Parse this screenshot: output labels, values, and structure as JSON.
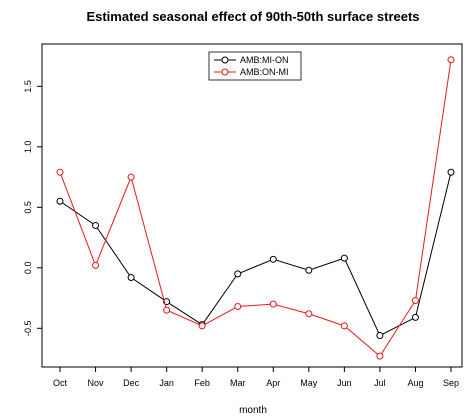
{
  "chart_data": {
    "type": "line",
    "title": "Estimated seasonal effect of 90th-50th surface streets",
    "xlabel": "month",
    "ylabel": "",
    "categories": [
      "Oct",
      "Nov",
      "Dec",
      "Jan",
      "Feb",
      "Mar",
      "Apr",
      "May",
      "Jun",
      "Jul",
      "Aug",
      "Sep"
    ],
    "ylim": [
      -0.82,
      1.85
    ],
    "yticks": [
      "-0.5",
      "0.0",
      "0.5",
      "1.0",
      "1.5"
    ],
    "grid": false,
    "legend_position": "top-center",
    "series": [
      {
        "name": "AMB:MI-ON",
        "color": "#000000",
        "values": [
          0.55,
          0.35,
          -0.08,
          -0.28,
          -0.47,
          -0.05,
          0.07,
          -0.02,
          0.08,
          -0.56,
          -0.41,
          0.79
        ]
      },
      {
        "name": "AMB:ON-MI",
        "color": "#e41a1c",
        "values": [
          0.79,
          0.02,
          0.75,
          -0.35,
          -0.48,
          -0.32,
          -0.3,
          -0.38,
          -0.48,
          -0.73,
          -0.27,
          1.72
        ]
      }
    ]
  }
}
